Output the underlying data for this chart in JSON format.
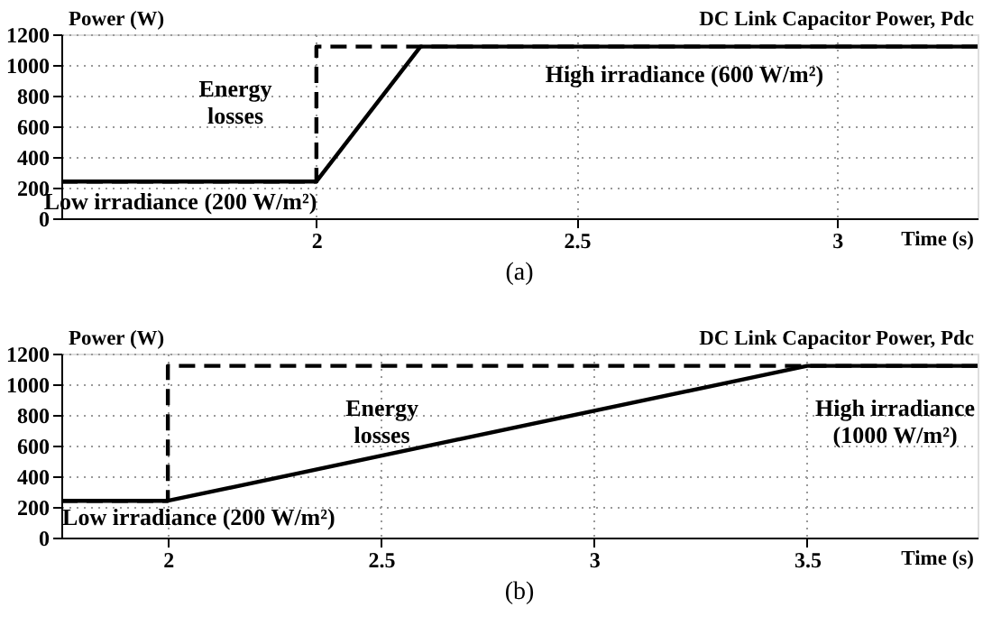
{
  "chart_data": [
    {
      "type": "line",
      "title": "DC Link Capacitor  Power, Pdc",
      "ylabel": "Power (W)",
      "xlabel": "Time (s)",
      "series": [
        {
          "x": [
            1.51,
            2,
            2,
            3.27
          ],
          "values": [
            240,
            240,
            1120,
            1120
          ],
          "color": "#000000",
          "line_style": "dashed"
        },
        {
          "x": [
            1.51,
            2,
            2.2,
            3.27
          ],
          "values": [
            240,
            240,
            1120,
            1120
          ],
          "color": "#000000",
          "line_style": "solid"
        }
      ],
      "xlim": [
        1.51,
        3.27
      ],
      "xticks": [
        2,
        2.5,
        3
      ],
      "ylim": [
        0,
        1200
      ],
      "yticks": [
        0,
        200,
        400,
        600,
        800,
        1000,
        1200
      ],
      "grid": true,
      "legend": false,
      "marker": "none",
      "annotations": [
        "Low irradiance (200 W/m²)",
        "Energy\nlosses",
        "High irradiance (600 W/m²)",
        "(a)"
      ]
    },
    {
      "type": "line",
      "title": "DC Link Capacitor  Power, Pdc",
      "ylabel": "Power (W)",
      "xlabel": "Time (s)",
      "series": [
        {
          "x": [
            1.75,
            2,
            2,
            3.9
          ],
          "values": [
            240,
            240,
            1120,
            1120
          ],
          "color": "#000000",
          "line_style": "dashed"
        },
        {
          "x": [
            1.75,
            2,
            3.5,
            3.9
          ],
          "values": [
            240,
            240,
            1120,
            1120
          ],
          "color": "#000000",
          "line_style": "solid"
        }
      ],
      "xlim": [
        1.75,
        3.9
      ],
      "xticks": [
        2,
        2.5,
        3,
        3.5
      ],
      "ylim": [
        0,
        1200
      ],
      "yticks": [
        0,
        200,
        400,
        600,
        800,
        1000,
        1200
      ],
      "grid": true,
      "legend": false,
      "marker": "none",
      "annotations": [
        "Low irradiance (200 W/m²)",
        "Energy\nlosses",
        "High irradiance\n(1000 W/m²)",
        "(b)"
      ]
    }
  ]
}
